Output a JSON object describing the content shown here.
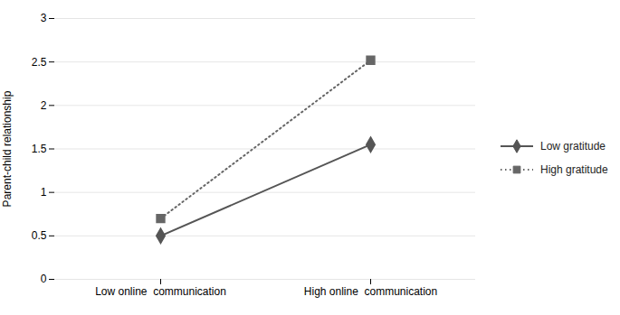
{
  "chart_data": {
    "type": "line",
    "categories": [
      "Low online  communication",
      "High online  communication"
    ],
    "series": [
      {
        "name": "Low gratitude",
        "color": "#555555",
        "values": [
          0.5,
          1.55
        ],
        "marker": "diamond",
        "line_style": "solid"
      },
      {
        "name": "High gratitude",
        "color": "#666666",
        "values": [
          0.7,
          2.52
        ],
        "marker": "square",
        "line_style": "dotted"
      }
    ],
    "ylabel": "Parent-child relationship",
    "ylim": [
      0,
      3
    ],
    "yticks": [
      0,
      0.5,
      1,
      1.5,
      2,
      2.5,
      3
    ],
    "grid": true,
    "legend": "right"
  }
}
